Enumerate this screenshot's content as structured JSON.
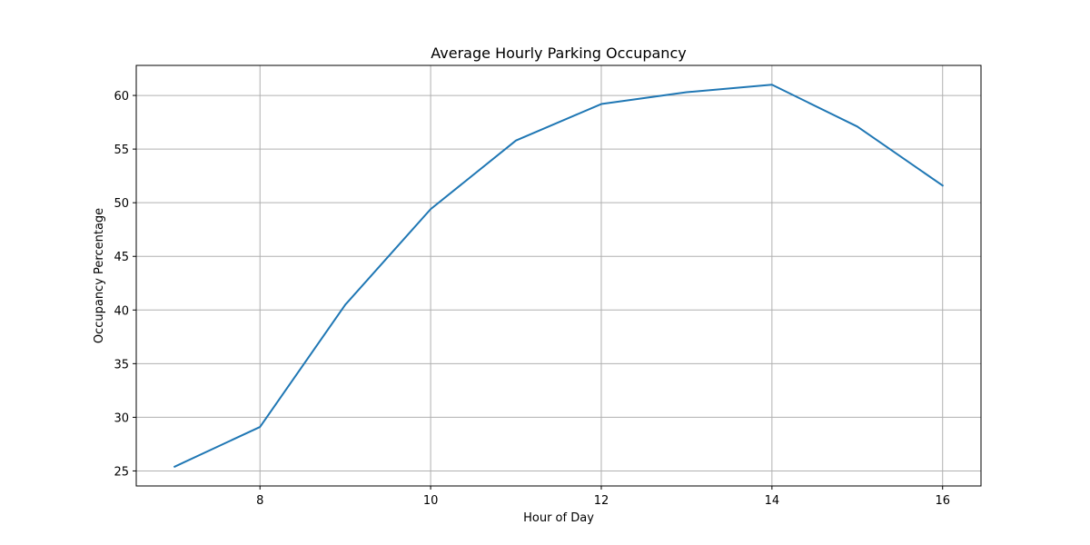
{
  "chart_data": {
    "type": "line",
    "title": "Average Hourly Parking Occupancy",
    "xlabel": "Hour of Day",
    "ylabel": "Occupancy Percentage",
    "x": [
      7,
      8,
      9,
      10,
      11,
      12,
      13,
      14,
      15,
      16
    ],
    "series": [
      {
        "values": [
          25.4,
          29.1,
          40.5,
          49.4,
          55.8,
          59.2,
          60.3,
          61.0,
          57.1,
          51.6
        ],
        "color": "#1f77b4"
      }
    ],
    "xlim": [
      6.55,
      16.45
    ],
    "ylim": [
      23.6,
      62.8
    ],
    "xticks": [
      8,
      10,
      12,
      14,
      16
    ],
    "yticks": [
      25,
      30,
      35,
      40,
      45,
      50,
      55,
      60
    ],
    "grid": true,
    "legend": "none"
  }
}
